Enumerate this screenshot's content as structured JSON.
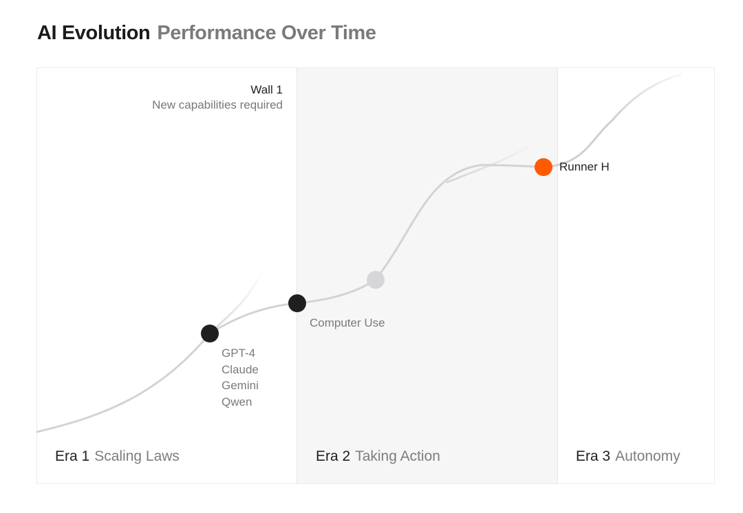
{
  "title": {
    "main": "AI Evolution",
    "sub": "Performance Over Time"
  },
  "wall": {
    "title": "Wall 1",
    "subtitle": "New capabilities required"
  },
  "milestones": {
    "gpt4_group": [
      "GPT-4",
      "Claude",
      "Gemini",
      "Qwen"
    ],
    "computer_use": "Computer Use",
    "runner_h": "Runner H"
  },
  "eras": [
    {
      "number": "Era 1",
      "name": "Scaling Laws"
    },
    {
      "number": "Era 2",
      "name": "Taking Action"
    },
    {
      "number": "Era 3",
      "name": "Autonomy"
    }
  ],
  "colors": {
    "accent": "#ff5a00",
    "milestone_dot": "#1f1f1f",
    "future_dot": "#d6d6d9",
    "curve": "#cfcfd2",
    "era2_background": "#f6f6f6"
  }
}
